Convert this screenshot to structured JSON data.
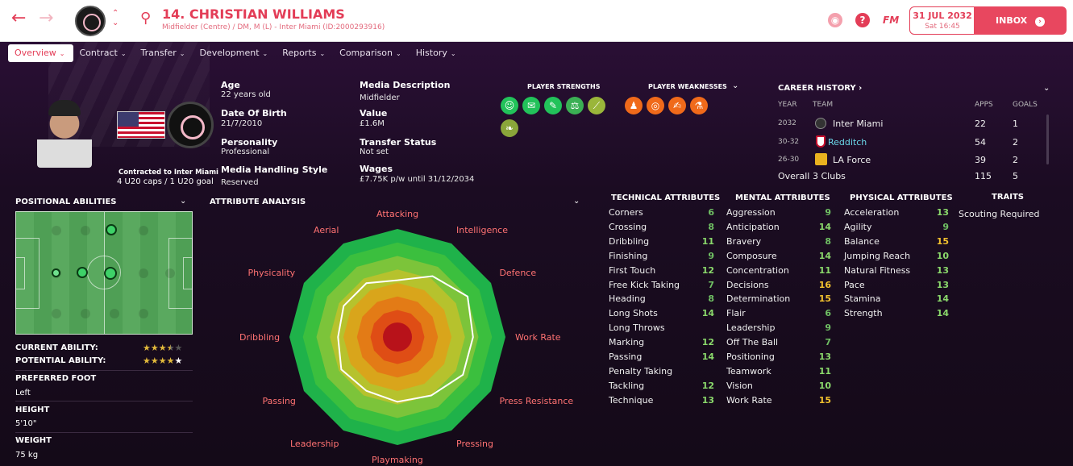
{
  "header": {
    "player_name": "14. CHRISTIAN WILLIAMS",
    "player_sub": "Midfielder (Centre) / DM, M (L) - Inter Miami (ID:2000293916)",
    "fm_label": "FM",
    "date": "31 JUL 2032",
    "time": "Sat 16:45",
    "inbox_label": "INBOX"
  },
  "tabs": [
    "Overview",
    "Contract",
    "Transfer",
    "Development",
    "Reports",
    "Comparison",
    "History"
  ],
  "profile": {
    "contract_text": "Contracted to Inter Miami",
    "caps_text": "4 U20 caps / 1 U20 goal",
    "age_label": "Age",
    "age": "22 years old",
    "dob_label": "Date Of Birth",
    "dob": "21/7/2010",
    "personality_label": "Personality",
    "personality": "Professional",
    "media_style_label": "Media Handling Style",
    "media_style": "Reserved",
    "media_desc_label": "Media Description",
    "media_desc": "Midfielder",
    "value_label": "Value",
    "value": "£1.6M",
    "transfer_status_label": "Transfer Status",
    "transfer_status": "Not set",
    "wages_label": "Wages",
    "wages": "£7.75K p/w until 31/12/2034"
  },
  "strengths": {
    "title": "PLAYER STRENGTHS",
    "colors": [
      "#22c25a",
      "#22c25a",
      "#22c25a",
      "#3bb054",
      "#9ab63a",
      "#8aa53a"
    ]
  },
  "weaknesses": {
    "title": "PLAYER WEAKNESSES",
    "colors": [
      "#f06a1a",
      "#f06a1a",
      "#f06a1a",
      "#f06a1a"
    ]
  },
  "career": {
    "title": "CAREER HISTORY ›",
    "col_year": "YEAR",
    "col_team": "TEAM",
    "col_apps": "APPS",
    "col_goals": "GOALS",
    "rows": [
      {
        "year": "2032",
        "team": "Inter Miami",
        "apps": "22",
        "goals": "1"
      },
      {
        "year": "30-32",
        "team": "Redditch",
        "apps": "54",
        "goals": "2"
      },
      {
        "year": "26-30",
        "team": "LA Force",
        "apps": "39",
        "goals": "2"
      }
    ],
    "overall_label": "Overall",
    "overall_team": "3 Clubs",
    "overall_apps": "115",
    "overall_goals": "5"
  },
  "positional": {
    "title": "POSITIONAL ABILITIES",
    "current_ability_label": "CURRENT ABILITY:",
    "potential_ability_label": "POTENTIAL ABILITY:",
    "current_ability_stars": 3.5,
    "potential_ability_stars": 4.5,
    "preferred_foot_label": "PREFERRED FOOT",
    "preferred_foot": "Left",
    "height_label": "HEIGHT",
    "height": "5'10\"",
    "weight_label": "WEIGHT",
    "weight": "75 kg"
  },
  "attribute_analysis": {
    "title": "ATTRIBUTE ANALYSIS",
    "labels": [
      "Attacking",
      "Intelligence",
      "Defence",
      "Work Rate",
      "Press Resistance",
      "Pressing",
      "Playmaking",
      "Leadership",
      "Passing",
      "Dribbling",
      "Physicality",
      "Aerial"
    ],
    "values": [
      10.5,
      13,
      15,
      14,
      14,
      12.5,
      12,
      11.5,
      12,
      11,
      11.5,
      11.5
    ],
    "max": 20
  },
  "technical": {
    "title": "TECHNICAL ATTRIBUTES",
    "items": [
      {
        "name": "Corners",
        "value": "6"
      },
      {
        "name": "Crossing",
        "value": "8"
      },
      {
        "name": "Dribbling",
        "value": "11"
      },
      {
        "name": "Finishing",
        "value": "9"
      },
      {
        "name": "First Touch",
        "value": "12"
      },
      {
        "name": "Free Kick Taking",
        "value": "7"
      },
      {
        "name": "Heading",
        "value": "8"
      },
      {
        "name": "Long Shots",
        "value": "14"
      },
      {
        "name": "Long Throws",
        "value": ""
      },
      {
        "name": "Marking",
        "value": "12"
      },
      {
        "name": "Passing",
        "value": "14"
      },
      {
        "name": "Penalty Taking",
        "value": ""
      },
      {
        "name": "Tackling",
        "value": "12"
      },
      {
        "name": "Technique",
        "value": "13"
      }
    ]
  },
  "mental": {
    "title": "MENTAL ATTRIBUTES",
    "items": [
      {
        "name": "Aggression",
        "value": "9"
      },
      {
        "name": "Anticipation",
        "value": "14"
      },
      {
        "name": "Bravery",
        "value": "8"
      },
      {
        "name": "Composure",
        "value": "14"
      },
      {
        "name": "Concentration",
        "value": "11"
      },
      {
        "name": "Decisions",
        "value": "16"
      },
      {
        "name": "Determination",
        "value": "15"
      },
      {
        "name": "Flair",
        "value": "6"
      },
      {
        "name": "Leadership",
        "value": "9"
      },
      {
        "name": "Off The Ball",
        "value": "7"
      },
      {
        "name": "Positioning",
        "value": "13"
      },
      {
        "name": "Teamwork",
        "value": "11"
      },
      {
        "name": "Vision",
        "value": "10"
      },
      {
        "name": "Work Rate",
        "value": "15"
      }
    ]
  },
  "physical": {
    "title": "PHYSICAL ATTRIBUTES",
    "items": [
      {
        "name": "Acceleration",
        "value": "13"
      },
      {
        "name": "Agility",
        "value": "9"
      },
      {
        "name": "Balance",
        "value": "15"
      },
      {
        "name": "Jumping Reach",
        "value": "10"
      },
      {
        "name": "Natural Fitness",
        "value": "13"
      },
      {
        "name": "Pace",
        "value": "13"
      },
      {
        "name": "Stamina",
        "value": "14"
      },
      {
        "name": "Strength",
        "value": "14"
      }
    ]
  },
  "traits": {
    "title": "TRAITS",
    "items": [
      "Scouting Required"
    ]
  }
}
